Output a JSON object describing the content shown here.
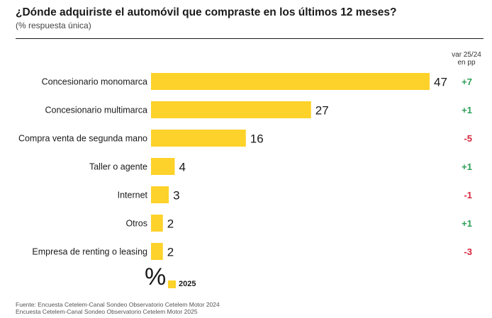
{
  "title": "¿Dónde adquiriste el automóvil que compraste en los últimos 12 meses?",
  "subtitle": "(% respuesta única)",
  "var_header": [
    "var 25/24",
    "en pp"
  ],
  "unit_symbol": "%",
  "legend_label": "2025",
  "source": [
    "Fuente: Encuesta Cetelem-Canal Sondeo Observatorio Cetelem Motor 2024",
    "Encuesta Cetelem-Canal Sondeo Observatorio Cetelem Motor 2025"
  ],
  "colors": {
    "bar": "#FDD22A",
    "positive": "#2E9E57",
    "negative": "#D7263D",
    "text": "#1a1a1a"
  },
  "chart_data": {
    "type": "bar",
    "orientation": "horizontal",
    "categories": [
      "Concesionario monomarca",
      "Concesionario multimarca",
      "Compra venta de segunda mano",
      "Taller o agente",
      "Internet",
      "Otros",
      "Empresa de renting o leasing"
    ],
    "series": [
      {
        "name": "2025",
        "values": [
          47,
          27,
          16,
          4,
          3,
          2,
          2
        ]
      }
    ],
    "variation": [
      "+7",
      "+1",
      "-5",
      "+1",
      "-1",
      "+1",
      "-3"
    ],
    "xlim": [
      0,
      47
    ],
    "grid": false,
    "legend_position": "bottom"
  }
}
